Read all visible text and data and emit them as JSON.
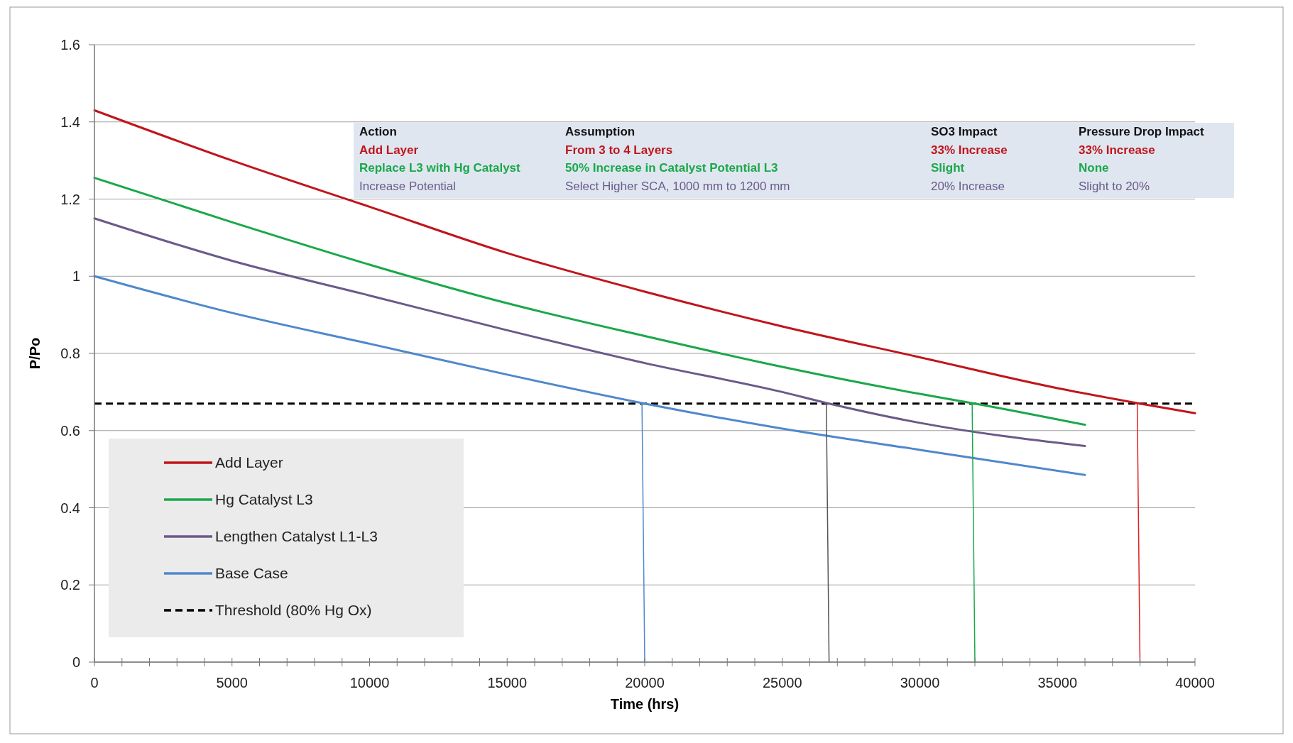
{
  "chart_data": {
    "type": "line",
    "xlabel": "Time (hrs)",
    "ylabel": "P/Po",
    "xlim": [
      0,
      40000
    ],
    "ylim": [
      0,
      1.6
    ],
    "xticks": [
      0,
      {
        "value": 1000,
        "label": null
      },
      {
        "value": 2000,
        "label": null
      },
      {
        "value": 3000,
        "label": null
      },
      {
        "value": 4000,
        "label": null
      },
      5000,
      {
        "value": 6000,
        "label": null
      },
      {
        "value": 7000,
        "label": null
      },
      {
        "value": 8000,
        "label": null
      },
      {
        "value": 9000,
        "label": null
      },
      10000,
      {
        "value": 11000,
        "label": null
      },
      {
        "value": 12000,
        "label": null
      },
      {
        "value": 13000,
        "label": null
      },
      {
        "value": 14000,
        "label": null
      },
      15000,
      {
        "value": 16000,
        "label": null
      },
      {
        "value": 17000,
        "label": null
      },
      {
        "value": 18000,
        "label": null
      },
      {
        "value": 19000,
        "label": null
      },
      20000,
      {
        "value": 21000,
        "label": null
      },
      {
        "value": 22000,
        "label": null
      },
      {
        "value": 23000,
        "label": null
      },
      {
        "value": 24000,
        "label": null
      },
      25000,
      {
        "value": 26000,
        "label": null
      },
      {
        "value": 27000,
        "label": null
      },
      {
        "value": 28000,
        "label": null
      },
      {
        "value": 29000,
        "label": null
      },
      30000,
      {
        "value": 31000,
        "label": null
      },
      {
        "value": 32000,
        "label": null
      },
      {
        "value": 33000,
        "label": null
      },
      {
        "value": 34000,
        "label": null
      },
      35000,
      {
        "value": 36000,
        "label": null
      },
      {
        "value": 37000,
        "label": null
      },
      {
        "value": 38000,
        "label": null
      },
      {
        "value": 39000,
        "label": null
      },
      40000
    ],
    "yticks": [
      0,
      0.2,
      0.4,
      0.6,
      0.8,
      1,
      1.2,
      1.4,
      1.6
    ],
    "grid": "y",
    "legend": "bottom left",
    "marker": "none",
    "line_style": "solid",
    "series": [
      {
        "name": "Add Layer",
        "color": "#c0151b",
        "x": [
          0,
          5000,
          10000,
          15000,
          20000,
          25000,
          30000,
          35000,
          38000,
          40000
        ],
        "values": [
          1.43,
          1.3,
          1.18,
          1.06,
          0.96,
          0.87,
          0.79,
          0.71,
          0.67,
          0.645
        ]
      },
      {
        "name": "Hg Catalyst L3",
        "color": "#1aa84a",
        "x": [
          0,
          5000,
          10000,
          15000,
          20000,
          25000,
          30000,
          32000,
          36000
        ],
        "values": [
          1.255,
          1.14,
          1.03,
          0.93,
          0.845,
          0.765,
          0.695,
          0.67,
          0.615
        ]
      },
      {
        "name": "Lengthen Catalyst L1-L3",
        "color": "#6a5a8a",
        "x": [
          0,
          5000,
          10000,
          15000,
          20000,
          25000,
          26700,
          30000,
          36000
        ],
        "values": [
          1.15,
          1.04,
          0.95,
          0.86,
          0.775,
          0.7,
          0.67,
          0.62,
          0.56
        ]
      },
      {
        "name": "Base Case",
        "color": "#4f88cc",
        "x": [
          0,
          5000,
          10000,
          15000,
          20000,
          25000,
          30000,
          36000
        ],
        "values": [
          1,
          0.905,
          0.825,
          0.745,
          0.67,
          0.605,
          0.55,
          0.485
        ]
      },
      {
        "color": "#4f88cc",
        "x": [
          19900,
          20000
        ],
        "values": [
          0.67,
          0
        ]
      },
      {
        "color": "#555555",
        "x": [
          26600,
          26700
        ],
        "values": [
          0.67,
          0
        ]
      },
      {
        "color": "#1aa84a",
        "x": [
          31900,
          32000
        ],
        "values": [
          0.67,
          0
        ]
      },
      {
        "color": "#e02020",
        "x": [
          37900,
          38000
        ],
        "values": [
          0.67,
          0
        ]
      }
    ],
    "ref_lines": [
      {
        "axis": "y",
        "value": 0.67,
        "label": "Threshold (80% Hg Ox)",
        "color": "#000000",
        "line_style": "dashed"
      }
    ],
    "annotations": [
      "Action",
      "Assumption",
      "SO3  Impact",
      "Pressure Drop Impact",
      "Add Layer",
      "From 3 to 4 Layers",
      "33% Increase",
      "33% Increase",
      "Replace L3 with Hg Catalyst",
      "50% Increase in Catalyst Potential L3",
      "Slight",
      "None",
      "Increase Potential",
      "Select Higher SCA, 1000 mm to 1200 mm",
      "20% Increase",
      "Slight to 20%"
    ]
  }
}
